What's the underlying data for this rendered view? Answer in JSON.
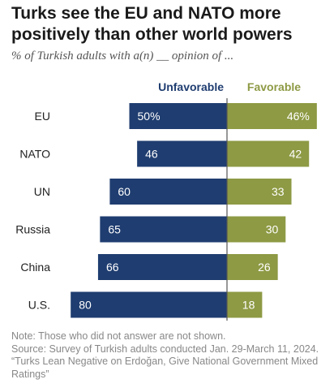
{
  "header": {
    "title": "Turks see the EU and NATO more positively than other world powers",
    "subtitle": "% of Turkish adults with a(n) __ opinion of ..."
  },
  "footer": {
    "note": "Note: Those who did not answer are not shown.",
    "source": "Source: Survey of Turkish adults conducted Jan. 29-March 11, 2024.",
    "report": "“Turks Lean Negative on Erdoğan, Give National Government Mixed Ratings”"
  },
  "colors": {
    "unfavorable": "#1f3d70",
    "favorable": "#8e9a44",
    "axis": "#555555",
    "label_text": "#ffffff"
  },
  "chart_data": {
    "type": "bar",
    "orientation": "horizontal-diverging",
    "categories": [
      "EU",
      "NATO",
      "UN",
      "Russia",
      "China",
      "U.S."
    ],
    "series": [
      {
        "name": "Unfavorable",
        "values": [
          50,
          46,
          60,
          65,
          66,
          80
        ],
        "labels": [
          "50%",
          "46",
          "60",
          "65",
          "66",
          "80"
        ]
      },
      {
        "name": "Favorable",
        "values": [
          46,
          42,
          33,
          30,
          26,
          18
        ],
        "labels": [
          "46%",
          "42",
          "33",
          "30",
          "26",
          "18"
        ]
      }
    ],
    "legend_placement": "top",
    "unit": "%"
  }
}
